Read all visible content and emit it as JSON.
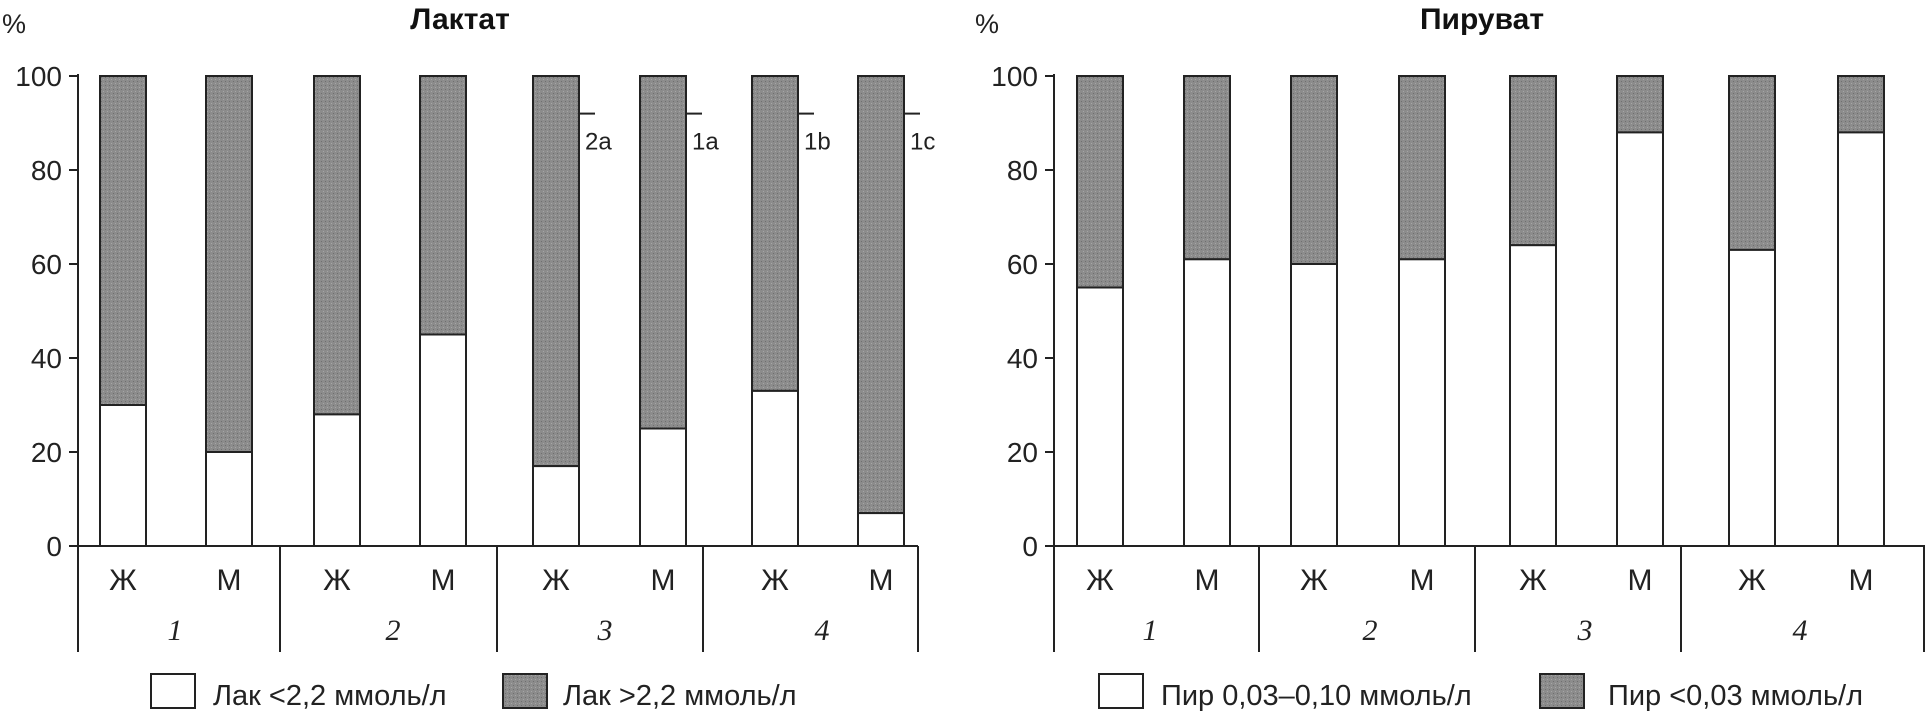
{
  "colors": {
    "dark_fill": "#8c8c8c",
    "light_fill": "#ffffff",
    "stroke": "#222222"
  },
  "chart_data": [
    {
      "type": "bar",
      "stacked": true,
      "title": "Лактат",
      "ylabel": "%",
      "ylim": [
        0,
        100
      ],
      "yticks": [
        "0",
        "20",
        "40",
        "60",
        "80",
        "100"
      ],
      "categories": [
        "Ж",
        "М",
        "Ж",
        "М",
        "Ж",
        "М",
        "Ж",
        "М"
      ],
      "groups": [
        "1",
        "2",
        "3",
        "4"
      ],
      "series": [
        {
          "name": "Лак <2,2 ммоль/л",
          "color": "#ffffff",
          "values": [
            30,
            20,
            28,
            45,
            17,
            25,
            33,
            7
          ]
        },
        {
          "name": "Лак >2,2 ммоль/л",
          "color": "#8c8c8c",
          "values": [
            70,
            80,
            72,
            55,
            83,
            75,
            67,
            93
          ]
        }
      ],
      "annotations": [
        {
          "text": "2a",
          "after_bar": 4,
          "y": 92
        },
        {
          "text": "1a",
          "after_bar": 5,
          "y": 92
        },
        {
          "text": "1b",
          "after_bar": 6,
          "y": 92
        },
        {
          "text": "1c",
          "after_bar": 7,
          "y": 92
        }
      ],
      "legend_position": "bottom"
    },
    {
      "type": "bar",
      "stacked": true,
      "title": "Пируват",
      "ylabel": "%",
      "ylim": [
        0,
        100
      ],
      "yticks": [
        "0",
        "20",
        "40",
        "60",
        "80",
        "100"
      ],
      "categories": [
        "Ж",
        "М",
        "Ж",
        "М",
        "Ж",
        "М",
        "Ж",
        "М"
      ],
      "groups": [
        "1",
        "2",
        "3",
        "4"
      ],
      "series": [
        {
          "name": "Пир 0,03–0,10 ммоль/л",
          "color": "#ffffff",
          "values": [
            55,
            61,
            60,
            61,
            64,
            88,
            63,
            88
          ]
        },
        {
          "name": "Пир <0,03 ммоль/л",
          "color": "#8c8c8c",
          "values": [
            45,
            39,
            40,
            39,
            36,
            12,
            37,
            12
          ]
        }
      ],
      "annotations": [],
      "legend_position": "bottom"
    }
  ]
}
